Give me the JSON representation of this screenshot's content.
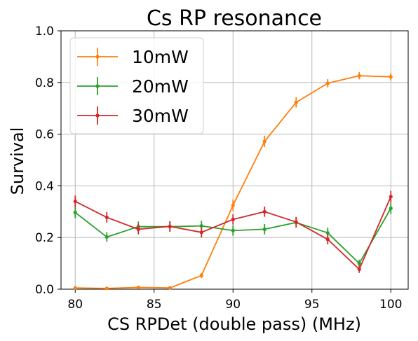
{
  "chart_data": {
    "type": "line",
    "title": "Cs RP resonance",
    "xlabel": "CS RPDet (double pass) (MHz)",
    "ylabel": "Survival",
    "xlim": [
      79.1,
      101.1
    ],
    "ylim": [
      0.0,
      1.0
    ],
    "xticks": [
      80,
      85,
      90,
      95,
      100
    ],
    "yticks": [
      0.0,
      0.2,
      0.4,
      0.6,
      0.8,
      1.0
    ],
    "xtick_labels": [
      "80",
      "85",
      "90",
      "95",
      "100"
    ],
    "ytick_labels": [
      "0.0",
      "0.2",
      "0.4",
      "0.6",
      "0.8",
      "1.0"
    ],
    "grid": true,
    "legend_position": "top-left",
    "x": [
      80,
      82,
      84,
      86,
      88,
      90,
      92,
      94,
      96,
      98,
      100
    ],
    "series": [
      {
        "name": "10mW",
        "color": "#ff7f0e",
        "values": [
          0.005,
          0.003,
          0.007,
          0.005,
          0.053,
          0.325,
          0.572,
          0.723,
          0.797,
          0.826,
          0.822
        ],
        "errors": [
          0.006,
          0.004,
          0.006,
          0.005,
          0.01,
          0.022,
          0.022,
          0.02,
          0.016,
          0.014,
          0.014
        ]
      },
      {
        "name": "20mW",
        "color": "#2ca02c",
        "values": [
          0.297,
          0.202,
          0.242,
          0.242,
          0.245,
          0.227,
          0.232,
          0.258,
          0.218,
          0.1,
          0.313
        ],
        "errors": [
          0.022,
          0.018,
          0.02,
          0.02,
          0.02,
          0.02,
          0.02,
          0.02,
          0.02,
          0.014,
          0.022
        ]
      },
      {
        "name": "30mW",
        "color": "#d62728",
        "values": [
          0.34,
          0.278,
          0.232,
          0.243,
          0.22,
          0.27,
          0.3,
          0.26,
          0.193,
          0.077,
          0.358
        ],
        "errors": [
          0.022,
          0.02,
          0.02,
          0.02,
          0.02,
          0.02,
          0.02,
          0.02,
          0.02,
          0.014,
          0.022
        ]
      }
    ]
  }
}
